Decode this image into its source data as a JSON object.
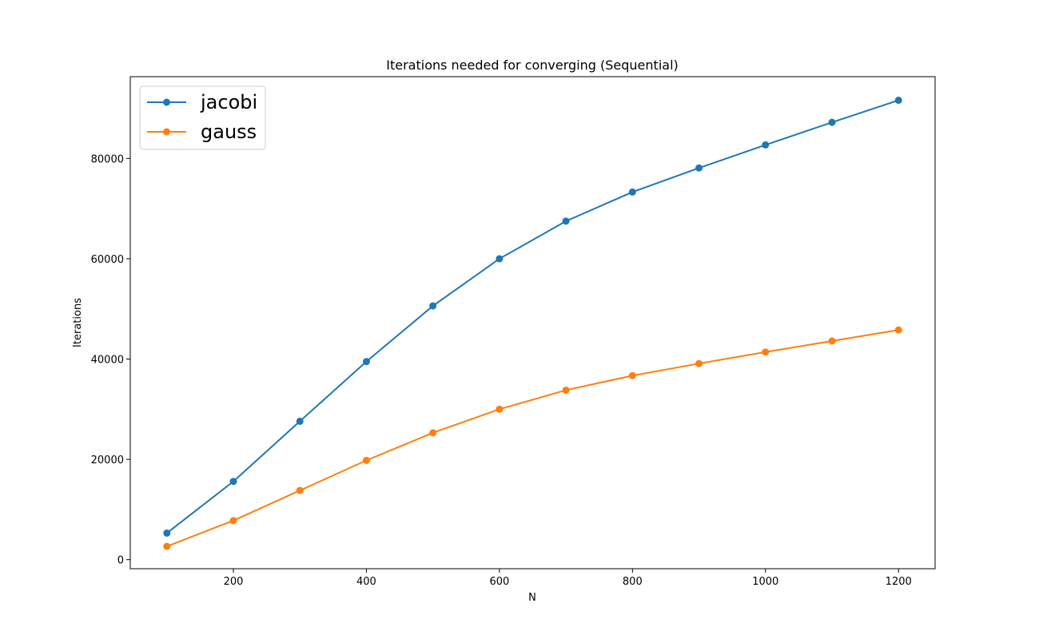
{
  "chart_data": {
    "type": "line",
    "title": "Iterations needed for converging (Sequential)",
    "xlabel": "N",
    "ylabel": "Iterations",
    "x": [
      100,
      200,
      300,
      400,
      500,
      600,
      700,
      800,
      900,
      1000,
      1100,
      1200
    ],
    "xlim": [
      45,
      1255
    ],
    "ylim": [
      -1800,
      96300
    ],
    "xticks": [
      200,
      400,
      600,
      800,
      1000,
      1200
    ],
    "yticks": [
      0,
      20000,
      40000,
      60000,
      80000
    ],
    "grid": false,
    "legend_position": "top-left",
    "markers": true,
    "series": [
      {
        "name": "jacobi",
        "color": "#1f77b4",
        "values": [
          5300,
          15600,
          27600,
          39500,
          50600,
          60000,
          67500,
          73300,
          78100,
          82700,
          87200,
          91600
        ]
      },
      {
        "name": "gauss",
        "color": "#ff7f0e",
        "values": [
          2650,
          7800,
          13800,
          19800,
          25300,
          30000,
          33800,
          36700,
          39100,
          41400,
          43600,
          45800
        ]
      }
    ]
  }
}
